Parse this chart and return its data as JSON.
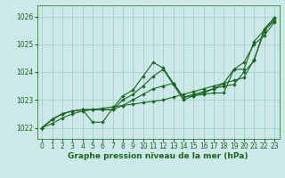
{
  "bg_color": "#cce8e8",
  "line_color": "#1a6620",
  "grid_color": "#99cccc",
  "xlabel": "Graphe pression niveau de la mer (hPa)",
  "xlabel_color": "#1a6620",
  "ylim": [
    1021.6,
    1026.4
  ],
  "xlim": [
    -0.5,
    23.5
  ],
  "xticks": [
    0,
    1,
    2,
    3,
    4,
    5,
    6,
    7,
    8,
    9,
    10,
    11,
    12,
    13,
    14,
    15,
    16,
    17,
    18,
    19,
    20,
    21,
    22,
    23
  ],
  "yticks": [
    1022,
    1023,
    1024,
    1025,
    1026
  ],
  "series": [
    [
      1022.0,
      1022.3,
      1022.5,
      1022.6,
      1022.65,
      1022.2,
      1022.2,
      1022.7,
      1023.15,
      1023.35,
      1023.85,
      1024.35,
      1024.15,
      1023.6,
      1023.1,
      1023.15,
      1023.2,
      1023.25,
      1023.25,
      1024.1,
      1024.1,
      1025.1,
      1025.5,
      1025.85
    ],
    [
      1022.0,
      1022.3,
      1022.5,
      1022.6,
      1022.65,
      1022.65,
      1022.65,
      1022.65,
      1023.0,
      1023.2,
      1023.5,
      1023.85,
      1024.1,
      1023.55,
      1023.0,
      1023.15,
      1023.25,
      1023.4,
      1023.6,
      1024.1,
      1024.35,
      1025.0,
      1025.3,
      1025.8
    ],
    [
      1022.0,
      1022.3,
      1022.5,
      1022.6,
      1022.65,
      1022.65,
      1022.65,
      1022.65,
      1022.8,
      1023.0,
      1023.2,
      1023.4,
      1023.5,
      1023.6,
      1023.1,
      1023.2,
      1023.3,
      1023.4,
      1023.5,
      1023.55,
      1024.0,
      1024.4,
      1025.55,
      1025.95
    ],
    [
      1022.0,
      1022.15,
      1022.35,
      1022.5,
      1022.6,
      1022.65,
      1022.7,
      1022.75,
      1022.8,
      1022.85,
      1022.9,
      1022.95,
      1023.0,
      1023.1,
      1023.2,
      1023.3,
      1023.4,
      1023.5,
      1023.6,
      1023.7,
      1023.8,
      1024.45,
      1025.45,
      1025.95
    ]
  ],
  "markersize": 2.0,
  "linewidth": 0.8,
  "xlabel_fontsize": 6.5,
  "tick_fontsize": 5.5
}
